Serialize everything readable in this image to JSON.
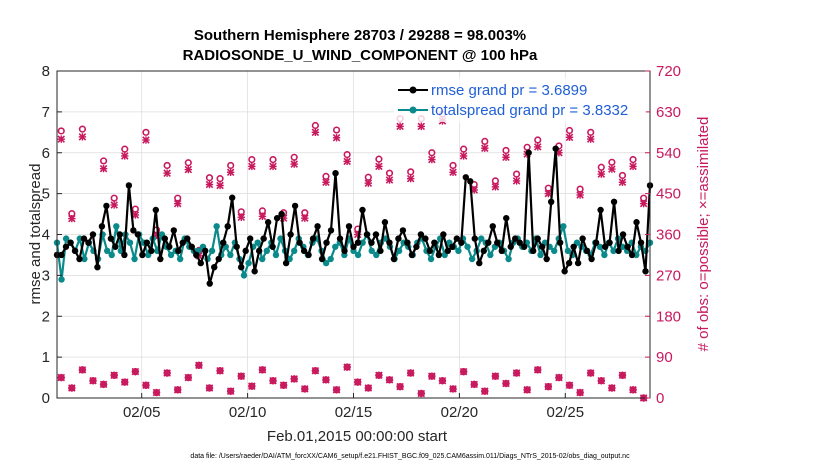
{
  "chart_data": {
    "type": "line",
    "title_line1": "Southern Hemisphere 28703 / 29288 = 98.003%",
    "title_line2": "RADIOSONDE_U_WIND_COMPONENT @ 100 hPa",
    "xlabel": "Feb.01,2015 00:00:00 start",
    "ylabel_left": "rmse and totalspread",
    "ylabel_right": "# of obs: o=possible; ×=assimilated",
    "footnote": "data file: /Users/raeder/DAI/ATM_forcXX/CAM6_setup/f.e21.FHIST_BGC.f09_025.CAM6assim.011/Diags_NTrS_2015-02/obs_diag_output.nc",
    "xlim": [
      1,
      29
    ],
    "ylim_left": [
      0,
      8
    ],
    "ylim_right": [
      0,
      720
    ],
    "x_ticks": [
      5,
      10,
      15,
      20,
      25
    ],
    "x_tick_labels": [
      "02/05",
      "02/10",
      "02/15",
      "02/20",
      "02/25"
    ],
    "y_ticks_left": [
      "0",
      "1",
      "2",
      "3",
      "4",
      "5",
      "6",
      "7",
      "8"
    ],
    "y_ticks_right": [
      "0",
      "90",
      "180",
      "270",
      "360",
      "450",
      "540",
      "630",
      "720"
    ],
    "legend": [
      {
        "name": "rmse grand pr = 3.6899",
        "color": "#000000"
      },
      {
        "name": "totalspread grand pr = 3.8332",
        "color": "#008080"
      }
    ],
    "colors": {
      "rmse": "#000000",
      "spread": "#0a8a8a",
      "obs": "#c8195e"
    },
    "series": [
      {
        "name": "rmse",
        "axis": "left",
        "values": [
          3.5,
          3.5,
          3.7,
          3.8,
          3.6,
          3.4,
          3.9,
          3.8,
          4.0,
          3.2,
          4.2,
          4.7,
          3.9,
          3.7,
          4.0,
          3.5,
          5.2,
          4.1,
          4.0,
          3.5,
          3.8,
          3.6,
          4.6,
          3.4,
          3.9,
          3.7,
          4.1,
          3.6,
          3.8,
          3.9,
          3.7,
          3.5,
          3.3,
          3.6,
          2.8,
          3.2,
          3.4,
          3.8,
          4.2,
          4.9,
          3.7,
          3.2,
          3.6,
          3.9,
          3.1,
          3.6,
          3.9,
          4.3,
          3.7,
          4.4,
          4.5,
          3.3,
          4.0,
          4.7,
          3.8,
          3.6,
          3.5,
          3.9,
          4.2,
          3.4,
          3.8,
          4.1,
          5.5,
          3.9,
          3.6,
          4.2,
          3.7,
          3.8,
          4.6,
          4.0,
          3.8,
          4.0,
          3.6,
          4.3,
          3.8,
          3.4,
          3.9,
          4.1,
          3.8,
          3.5,
          3.7,
          4.0,
          3.9,
          3.6,
          3.8,
          3.5,
          4.0,
          3.6,
          3.7,
          3.9,
          3.8,
          5.4,
          5.3,
          3.9,
          3.3,
          3.6,
          3.8,
          4.2,
          3.8,
          3.6,
          4.4,
          3.7,
          3.9,
          3.8,
          3.7,
          6.0,
          3.6,
          3.9,
          3.7,
          3.4,
          4.8,
          6.1,
          3.8,
          3.1,
          3.3,
          3.7,
          3.3,
          3.9,
          3.6,
          3.4,
          3.8,
          4.6,
          3.7,
          3.8,
          4.8,
          3.6,
          4.0,
          3.7,
          3.5,
          4.3,
          3.8,
          3.1,
          5.2
        ]
      },
      {
        "name": "totalspread",
        "axis": "left",
        "values": [
          3.8,
          2.9,
          3.9,
          3.8,
          3.6,
          3.9,
          3.4,
          3.8,
          3.6,
          3.4,
          4.0,
          3.6,
          3.5,
          4.2,
          3.6,
          4.0,
          3.8,
          3.4,
          4.0,
          3.8,
          3.5,
          3.9,
          3.6,
          4.0,
          3.7,
          3.5,
          3.6,
          3.4,
          3.9,
          3.7,
          3.6,
          3.6,
          3.7,
          3.4,
          3.6,
          4.2,
          3.5,
          3.7,
          3.5,
          3.8,
          3.4,
          3.0,
          3.3,
          3.7,
          3.8,
          3.4,
          3.6,
          3.8,
          3.5,
          3.9,
          3.6,
          3.4,
          3.6,
          3.9,
          3.7,
          3.5,
          3.8,
          3.9,
          3.6,
          3.3,
          3.4,
          3.7,
          3.8,
          3.5,
          3.9,
          3.6,
          3.5,
          3.8,
          4.0,
          3.6,
          3.5,
          3.8,
          3.9,
          3.7,
          3.4,
          3.6,
          3.8,
          3.7,
          3.5,
          3.8,
          3.9,
          3.6,
          3.4,
          3.7,
          3.9,
          3.5,
          3.8,
          3.7,
          3.6,
          3.9,
          3.7,
          3.4,
          3.6,
          3.9,
          3.8,
          3.5,
          3.7,
          3.8,
          3.6,
          3.4,
          3.8,
          3.9,
          3.7,
          3.8,
          3.6,
          3.9,
          3.5,
          3.8,
          3.7,
          3.6,
          3.9,
          4.2,
          3.6,
          3.5,
          3.8,
          3.7,
          3.6,
          3.5,
          3.8,
          3.7,
          3.5,
          3.8,
          3.6,
          3.9,
          3.7,
          3.6,
          3.8,
          3.5,
          3.7,
          3.6,
          3.8
        ]
      },
      {
        "name": "obs possible",
        "axis": "right",
        "x": [
          1.2,
          1.7,
          2.2,
          3.2,
          3.7,
          4.2,
          4.7,
          5.2,
          5.7,
          6.2,
          6.7,
          7.2,
          7.7,
          8.2,
          8.7,
          9.2,
          9.7,
          10.2,
          10.7,
          11.2,
          11.7,
          12.2,
          12.7,
          13.2,
          13.7,
          14.2,
          14.7,
          15.2,
          15.7,
          16.2,
          16.7,
          17.2,
          17.7,
          18.2,
          18.7,
          19.2,
          19.7,
          20.2,
          20.7,
          21.2,
          21.7,
          22.2,
          22.7,
          23.2,
          23.7,
          24.2,
          24.7,
          25.2,
          25.7,
          26.2,
          26.7,
          27.2,
          27.7,
          28.2,
          28.7
        ],
        "values": [
          588,
          406,
          592,
          522,
          440,
          548,
          416,
          585,
          370,
          512,
          440,
          518,
          325,
          485,
          483,
          512,
          410,
          525,
          412,
          525,
          408,
          530,
          408,
          600,
          488,
          590,
          536,
          372,
          486,
          526,
          495,
          615,
          498,
          615,
          540,
          625,
          512,
          548,
          470,
          565,
          478,
          545,
          493,
          552,
          568,
          462,
          555,
          589,
          460,
          585,
          508,
          519,
          490,
          525,
          440
        ]
      },
      {
        "name": "obs assimilated",
        "axis": "right",
        "x": [
          1.2,
          1.7,
          2.2,
          3.2,
          3.7,
          4.2,
          4.7,
          5.2,
          5.7,
          6.2,
          6.7,
          7.2,
          7.7,
          8.2,
          8.7,
          9.2,
          9.7,
          10.2,
          10.7,
          11.2,
          11.7,
          12.2,
          12.7,
          13.2,
          13.7,
          14.2,
          14.7,
          15.2,
          15.7,
          16.2,
          16.7,
          17.2,
          17.7,
          18.2,
          18.7,
          19.2,
          19.7,
          20.2,
          20.7,
          21.2,
          21.7,
          22.2,
          22.7,
          23.2,
          23.7,
          24.2,
          24.7,
          25.2,
          25.7,
          26.2,
          26.7,
          27.2,
          27.7,
          28.2,
          28.7
        ],
        "values": [
          570,
          395,
          575,
          505,
          425,
          533,
          403,
          568,
          358,
          495,
          428,
          503,
          313,
          470,
          468,
          497,
          398,
          510,
          400,
          510,
          396,
          515,
          396,
          585,
          475,
          573,
          521,
          360,
          473,
          510,
          480,
          598,
          483,
          598,
          525,
          610,
          497,
          533,
          458,
          550,
          465,
          530,
          478,
          537,
          553,
          450,
          540,
          574,
          447,
          570,
          493,
          504,
          475,
          510,
          428
        ]
      },
      {
        "name": "obs possible (low)",
        "axis": "right",
        "x": [
          1.2,
          1.7,
          2.2,
          2.7,
          3.2,
          3.7,
          4.2,
          4.7,
          5.2,
          5.7,
          6.2,
          6.7,
          7.2,
          7.7,
          8.2,
          8.7,
          9.2,
          9.7,
          10.2,
          10.7,
          11.2,
          11.7,
          12.2,
          12.7,
          13.2,
          13.7,
          14.2,
          14.7,
          15.2,
          15.7,
          16.2,
          16.7,
          17.2,
          17.7,
          18.2,
          18.7,
          19.2,
          19.7,
          20.2,
          20.7,
          21.2,
          21.7,
          22.2,
          22.7,
          23.2,
          23.7,
          24.2,
          24.7,
          25.2,
          25.7,
          26.2,
          26.7,
          27.2,
          27.7,
          28.2,
          28.7
        ],
        "values": [
          45,
          22,
          62,
          38,
          30,
          50,
          35,
          58,
          28,
          12,
          55,
          18,
          45,
          72,
          22,
          60,
          15,
          48,
          26,
          62,
          38,
          28,
          42,
          20,
          60,
          40,
          18,
          68,
          35,
          22,
          50,
          40,
          25,
          55,
          10,
          48,
          38,
          20,
          58,
          30,
          15,
          48,
          32,
          55,
          18,
          62,
          25,
          45,
          28,
          12,
          55,
          38,
          22,
          50,
          18,
          0
        ]
      },
      {
        "name": "obs assimilated (low)",
        "axis": "right",
        "x": [
          1.2,
          1.7,
          2.2,
          2.7,
          3.2,
          3.7,
          4.2,
          4.7,
          5.2,
          5.7,
          6.2,
          6.7,
          7.2,
          7.7,
          8.2,
          8.7,
          9.2,
          9.7,
          10.2,
          10.7,
          11.2,
          11.7,
          12.2,
          12.7,
          13.2,
          13.7,
          14.2,
          14.7,
          15.2,
          15.7,
          16.2,
          16.7,
          17.2,
          17.7,
          18.2,
          18.7,
          19.2,
          19.7,
          20.2,
          20.7,
          21.2,
          21.7,
          22.2,
          22.7,
          23.2,
          23.7,
          24.2,
          24.7,
          25.2,
          25.7,
          26.2,
          26.7,
          27.2,
          27.7,
          28.2,
          28.7
        ],
        "values": [
          45,
          22,
          62,
          38,
          30,
          50,
          35,
          58,
          28,
          12,
          55,
          18,
          45,
          72,
          22,
          60,
          15,
          48,
          26,
          62,
          38,
          28,
          42,
          20,
          60,
          40,
          18,
          68,
          35,
          22,
          50,
          40,
          25,
          55,
          10,
          48,
          38,
          20,
          58,
          30,
          15,
          48,
          32,
          55,
          18,
          62,
          25,
          45,
          28,
          12,
          55,
          38,
          22,
          50,
          18,
          0
        ]
      }
    ]
  }
}
